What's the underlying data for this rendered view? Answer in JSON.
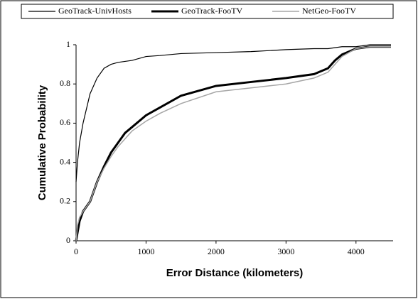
{
  "chart_data": {
    "type": "line",
    "xlabel": "Error Distance (kilometers)",
    "ylabel": "Cumulative Probability",
    "x": [
      0,
      20,
      50,
      100,
      200,
      300,
      400,
      500,
      600,
      700,
      800,
      1000,
      1200,
      1500,
      2000,
      2500,
      3000,
      3400,
      3600,
      3700,
      3800,
      4000,
      4200,
      4500
    ],
    "series": [
      {
        "name": "GeoTrack-UnivHosts",
        "color": "#000000",
        "width": 1.2,
        "values": [
          0.3,
          0.4,
          0.5,
          0.6,
          0.75,
          0.83,
          0.88,
          0.9,
          0.91,
          0.915,
          0.92,
          0.94,
          0.945,
          0.955,
          0.96,
          0.965,
          0.975,
          0.98,
          0.98,
          0.985,
          0.99,
          0.99,
          1,
          1
        ]
      },
      {
        "name": "GeoTrack-FooTV",
        "color": "#000000",
        "width": 3,
        "values": [
          0,
          0.04,
          0.1,
          0.15,
          0.2,
          0.3,
          0.38,
          0.45,
          0.5,
          0.55,
          0.58,
          0.64,
          0.68,
          0.74,
          0.79,
          0.81,
          0.83,
          0.85,
          0.88,
          0.92,
          0.95,
          0.98,
          0.99,
          0.99
        ]
      },
      {
        "name": "NetGeo-FooTV",
        "color": "#a6a6a6",
        "width": 1.5,
        "values": [
          0,
          0.08,
          0.12,
          0.15,
          0.2,
          0.3,
          0.37,
          0.43,
          0.48,
          0.52,
          0.56,
          0.61,
          0.65,
          0.7,
          0.76,
          0.78,
          0.8,
          0.83,
          0.86,
          0.9,
          0.94,
          0.98,
          0.99,
          0.99
        ]
      }
    ],
    "xlim": [
      0,
      4500
    ],
    "xticks": [
      0,
      1000,
      2000,
      3000,
      4000
    ],
    "ylim": [
      0,
      1
    ],
    "yticks": [
      0,
      0.2,
      0.4,
      0.6,
      0.8,
      1
    ],
    "legend": "top",
    "grid": false
  }
}
